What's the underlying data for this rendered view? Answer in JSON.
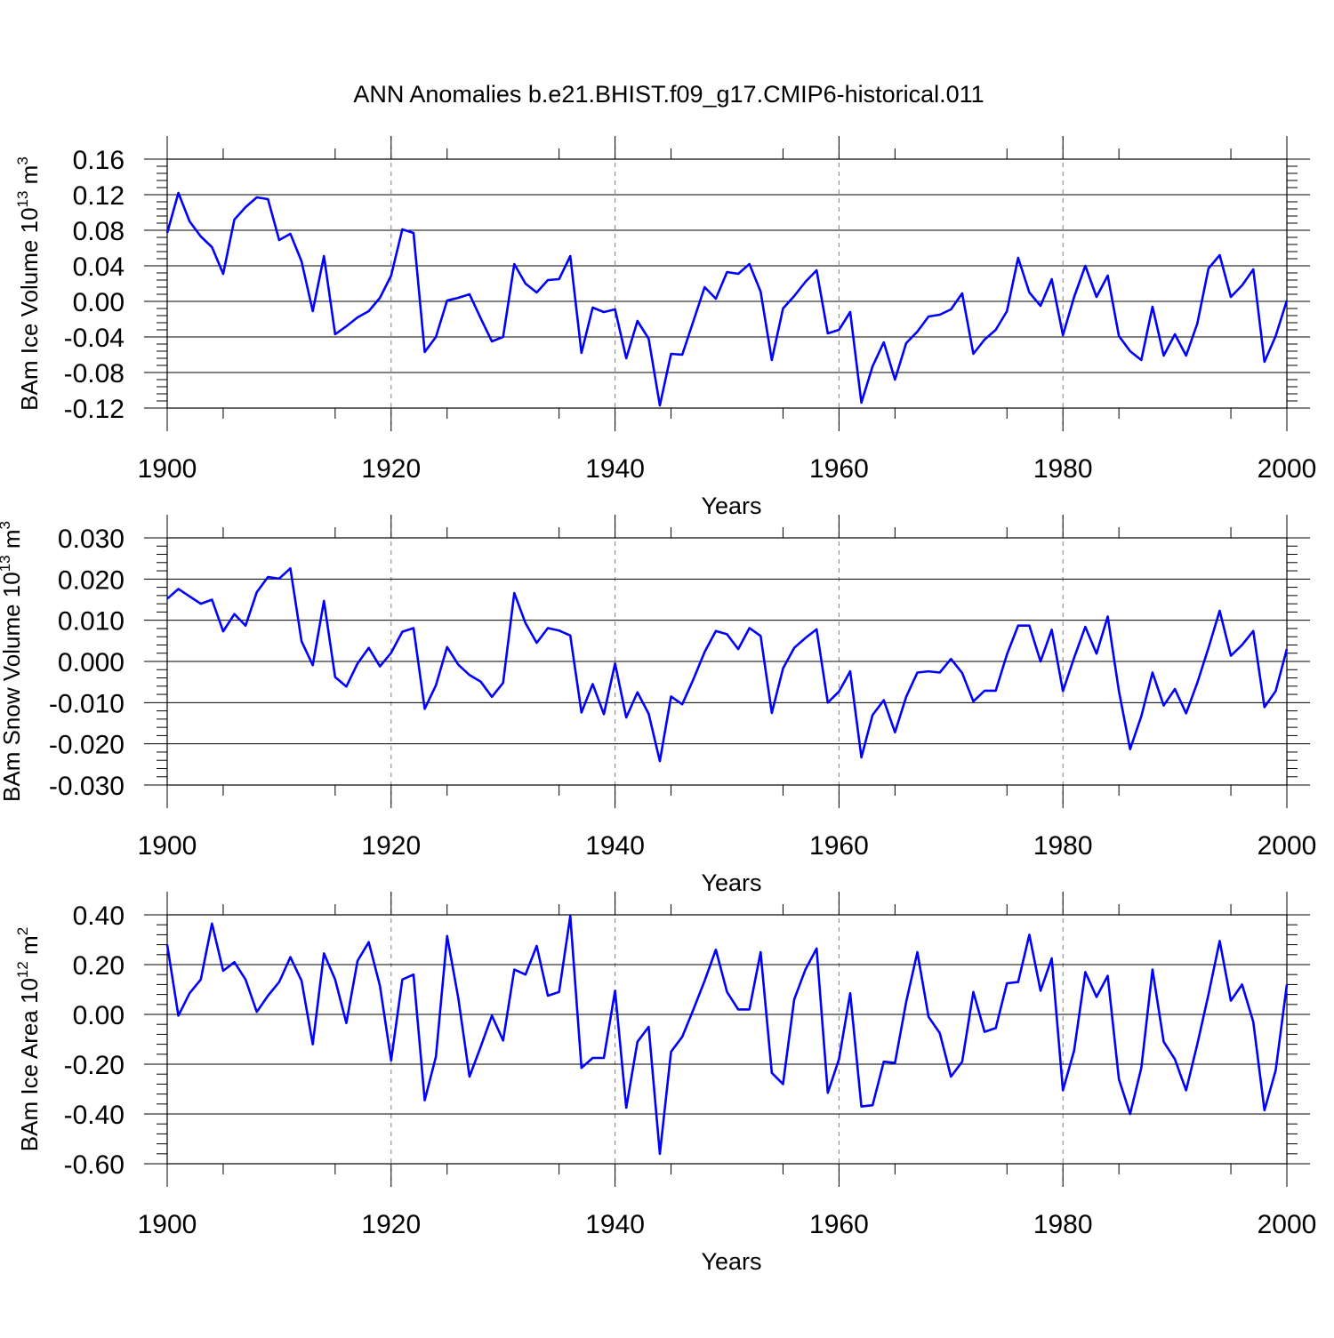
{
  "title": "ANN Anomalies b.e21.BHIST.f09_g17.CMIP6-historical.011",
  "colors": {
    "line": "#0000ff",
    "axis": "#000000",
    "grid": "#808080"
  },
  "chart_data": [
    {
      "type": "line",
      "title": "ANN Anomalies b.e21.BHIST.f09_g17.CMIP6-historical.011",
      "xlabel": "Years",
      "ylabel_main": "BAm Ice Volume 10",
      "ylabel_exp": "13",
      "ylabel_unit": "m",
      "ylabel_unit_exp": "3",
      "xlim": [
        1900,
        2000
      ],
      "ylim": [
        -0.12,
        0.16
      ],
      "xticks": [
        1900,
        1920,
        1940,
        1960,
        1980,
        2000
      ],
      "xtick_labels": [
        "1900",
        "1920",
        "1940",
        "1960",
        "1980",
        "2000"
      ],
      "yticks": [
        -0.12,
        -0.08,
        -0.04,
        0.0,
        0.04,
        0.08,
        0.12,
        0.16
      ],
      "ytick_labels": [
        "-0.12",
        "-0.08",
        "-0.04",
        "0.00",
        "0.04",
        "0.08",
        "0.12",
        "0.16"
      ],
      "grid_x": [
        1920,
        1940,
        1960,
        1980
      ],
      "x_start": 1900,
      "values": [
        0.077,
        0.122,
        0.09,
        0.073,
        0.061,
        0.031,
        0.092,
        0.106,
        0.117,
        0.115,
        0.069,
        0.076,
        0.045,
        -0.011,
        0.051,
        -0.037,
        -0.028,
        -0.018,
        -0.011,
        0.004,
        0.029,
        0.081,
        0.077,
        -0.057,
        -0.04,
        0.001,
        0.004,
        0.008,
        -0.019,
        -0.045,
        -0.04,
        0.042,
        0.02,
        0.01,
        0.024,
        0.025,
        0.051,
        -0.058,
        -0.007,
        -0.012,
        -0.009,
        -0.064,
        -0.022,
        -0.042,
        -0.117,
        -0.059,
        -0.06,
        -0.022,
        0.016,
        0.003,
        0.033,
        0.031,
        0.042,
        0.011,
        -0.066,
        -0.008,
        0.006,
        0.022,
        0.035,
        -0.036,
        -0.032,
        -0.012,
        -0.114,
        -0.073,
        -0.046,
        -0.088,
        -0.047,
        -0.034,
        -0.017,
        -0.015,
        -0.009,
        0.009,
        -0.059,
        -0.043,
        -0.032,
        -0.011,
        0.049,
        0.01,
        -0.005,
        0.025,
        -0.038,
        0.005,
        0.04,
        0.005,
        0.029,
        -0.039,
        -0.056,
        -0.066,
        -0.006,
        -0.061,
        -0.037,
        -0.061,
        -0.025,
        0.037,
        0.052,
        0.005,
        0.018,
        0.036,
        -0.068,
        -0.039,
        0.001
      ]
    },
    {
      "type": "line",
      "xlabel": "Years",
      "ylabel_main": "BAm Snow Volume 10",
      "ylabel_exp": "13",
      "ylabel_unit": "m",
      "ylabel_unit_exp": "3",
      "xlim": [
        1900,
        2000
      ],
      "ylim": [
        -0.03,
        0.03
      ],
      "xticks": [
        1900,
        1920,
        1940,
        1960,
        1980,
        2000
      ],
      "xtick_labels": [
        "1900",
        "1920",
        "1940",
        "1960",
        "1980",
        "2000"
      ],
      "yticks": [
        -0.03,
        -0.02,
        -0.01,
        0.0,
        0.01,
        0.02,
        0.03
      ],
      "ytick_labels": [
        "-0.030",
        "-0.020",
        "-0.010",
        "0.000",
        "0.010",
        "0.020",
        "0.030"
      ],
      "grid_x": [
        1920,
        1940,
        1960,
        1980
      ],
      "x_start": 1900,
      "values": [
        0.0152,
        0.0176,
        0.0158,
        0.014,
        0.015,
        0.0073,
        0.0115,
        0.0087,
        0.0168,
        0.0205,
        0.0201,
        0.0226,
        0.0049,
        -0.0009,
        0.0147,
        -0.0038,
        -0.0061,
        -0.0005,
        0.0033,
        -0.0012,
        0.0021,
        0.0072,
        0.0081,
        -0.0115,
        -0.0058,
        0.0035,
        -0.0008,
        -0.0033,
        -0.0049,
        -0.0086,
        -0.0052,
        0.0166,
        0.0093,
        0.0045,
        0.0081,
        0.0075,
        0.0063,
        -0.0124,
        -0.0055,
        -0.0128,
        -0.0005,
        -0.0136,
        -0.0075,
        -0.0127,
        -0.0242,
        -0.0085,
        -0.0104,
        -0.0043,
        0.0023,
        0.0074,
        0.0066,
        0.003,
        0.0081,
        0.0062,
        -0.0125,
        -0.0017,
        0.0033,
        0.0057,
        0.0078,
        -0.01,
        -0.0073,
        -0.0024,
        -0.0233,
        -0.013,
        -0.0094,
        -0.0172,
        -0.0086,
        -0.0027,
        -0.0024,
        -0.0027,
        0.0006,
        -0.0028,
        -0.0097,
        -0.0071,
        -0.0071,
        0.0017,
        0.0087,
        0.0087,
        0.0,
        0.0077,
        -0.0072,
        0.0009,
        0.0084,
        0.0019,
        0.0109,
        -0.0072,
        -0.0213,
        -0.0133,
        -0.0027,
        -0.0107,
        -0.0067,
        -0.0126,
        -0.0052,
        0.0033,
        0.0123,
        0.0014,
        0.004,
        0.0074,
        -0.0111,
        -0.0072,
        0.003
      ]
    },
    {
      "type": "line",
      "xlabel": "Years",
      "ylabel_main": "BAm Ice Area 10",
      "ylabel_exp": "12",
      "ylabel_unit": "m",
      "ylabel_unit_exp": "2",
      "xlim": [
        1900,
        2000
      ],
      "ylim": [
        -0.6,
        0.4
      ],
      "xticks": [
        1900,
        1920,
        1940,
        1960,
        1980,
        2000
      ],
      "xtick_labels": [
        "1900",
        "1920",
        "1940",
        "1960",
        "1980",
        "2000"
      ],
      "yticks": [
        -0.6,
        -0.4,
        -0.2,
        0.0,
        0.2,
        0.4
      ],
      "ytick_labels": [
        "-0.60",
        "-0.40",
        "-0.20",
        "0.00",
        "0.20",
        "0.40"
      ],
      "grid_x": [
        1920,
        1940,
        1960,
        1980
      ],
      "x_start": 1900,
      "values": [
        0.28,
        -0.005,
        0.085,
        0.14,
        0.365,
        0.175,
        0.21,
        0.14,
        0.01,
        0.075,
        0.13,
        0.23,
        0.135,
        -0.12,
        0.245,
        0.14,
        -0.035,
        0.215,
        0.29,
        0.115,
        -0.185,
        0.14,
        0.16,
        -0.345,
        -0.17,
        0.315,
        0.065,
        -0.25,
        -0.13,
        -0.005,
        -0.105,
        0.18,
        0.16,
        0.275,
        0.075,
        0.09,
        0.395,
        -0.215,
        -0.175,
        -0.175,
        0.095,
        -0.375,
        -0.11,
        -0.05,
        -0.56,
        -0.15,
        -0.09,
        0.02,
        0.135,
        0.26,
        0.09,
        0.02,
        0.02,
        0.25,
        -0.235,
        -0.28,
        0.06,
        0.18,
        0.265,
        -0.315,
        -0.18,
        0.085,
        -0.37,
        -0.365,
        -0.19,
        -0.195,
        0.05,
        0.25,
        -0.01,
        -0.075,
        -0.25,
        -0.19,
        0.09,
        -0.07,
        -0.055,
        0.125,
        0.13,
        0.32,
        0.095,
        0.225,
        -0.305,
        -0.145,
        0.17,
        0.07,
        0.155,
        -0.26,
        -0.4,
        -0.215,
        0.18,
        -0.11,
        -0.18,
        -0.305,
        -0.12,
        0.08,
        0.295,
        0.055,
        0.12,
        -0.03,
        -0.385,
        -0.225,
        0.12
      ]
    }
  ]
}
